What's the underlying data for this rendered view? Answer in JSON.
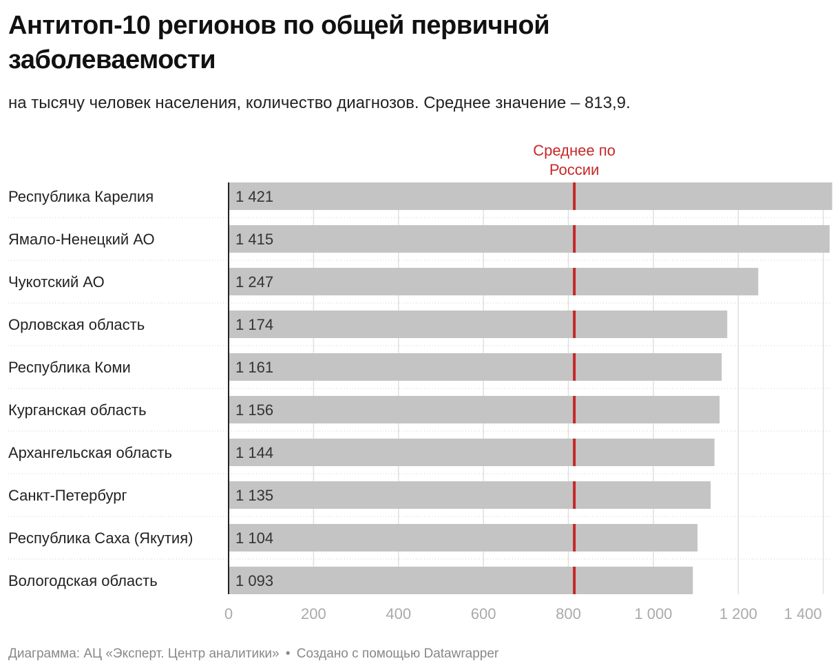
{
  "chart_data": {
    "type": "bar",
    "orientation": "horizontal",
    "title": "Антитоп-10 регионов по общей первичной заболеваемости",
    "subtitle": "на тысячу человек населения, количество диагнозов. Среднее значение – 813,9.",
    "categories": [
      "Республика Карелия",
      "Ямало-Ненецкий АО",
      "Чукотский АО",
      "Орловская область",
      "Республика Коми",
      "Курганская область",
      "Архангельская область",
      "Санкт-Петербург",
      "Республика Саха (Якутия)",
      "Вологодская область"
    ],
    "values": [
      1421,
      1415,
      1247,
      1174,
      1161,
      1156,
      1144,
      1135,
      1104,
      1093
    ],
    "value_labels": [
      "1 421",
      "1 415",
      "1 247",
      "1 174",
      "1 161",
      "1 156",
      "1 144",
      "1 135",
      "1 104",
      "1 093"
    ],
    "reference_line": {
      "value": 813.9,
      "label_lines": [
        "Среднее по",
        "России"
      ]
    },
    "xlim": [
      0,
      1420
    ],
    "x_ticks": [
      0,
      200,
      400,
      600,
      800,
      1000,
      1200,
      1400
    ],
    "x_tick_labels": [
      "0",
      "200",
      "400",
      "600",
      "800",
      "1 000",
      "1 200",
      "1 400"
    ],
    "grid": true,
    "xlabel": "",
    "ylabel": ""
  },
  "footer": {
    "source": "Диаграмма: АЦ «Эксперт. Центр аналитики»",
    "separator": "•",
    "credit": "Создано с помощью Datawrapper"
  },
  "colors": {
    "bar": "#c4c4c4",
    "reference_line": "#c62828",
    "grid": "#e0e0e0",
    "tick_label": "#aaaaaa",
    "footer": "#888888"
  }
}
